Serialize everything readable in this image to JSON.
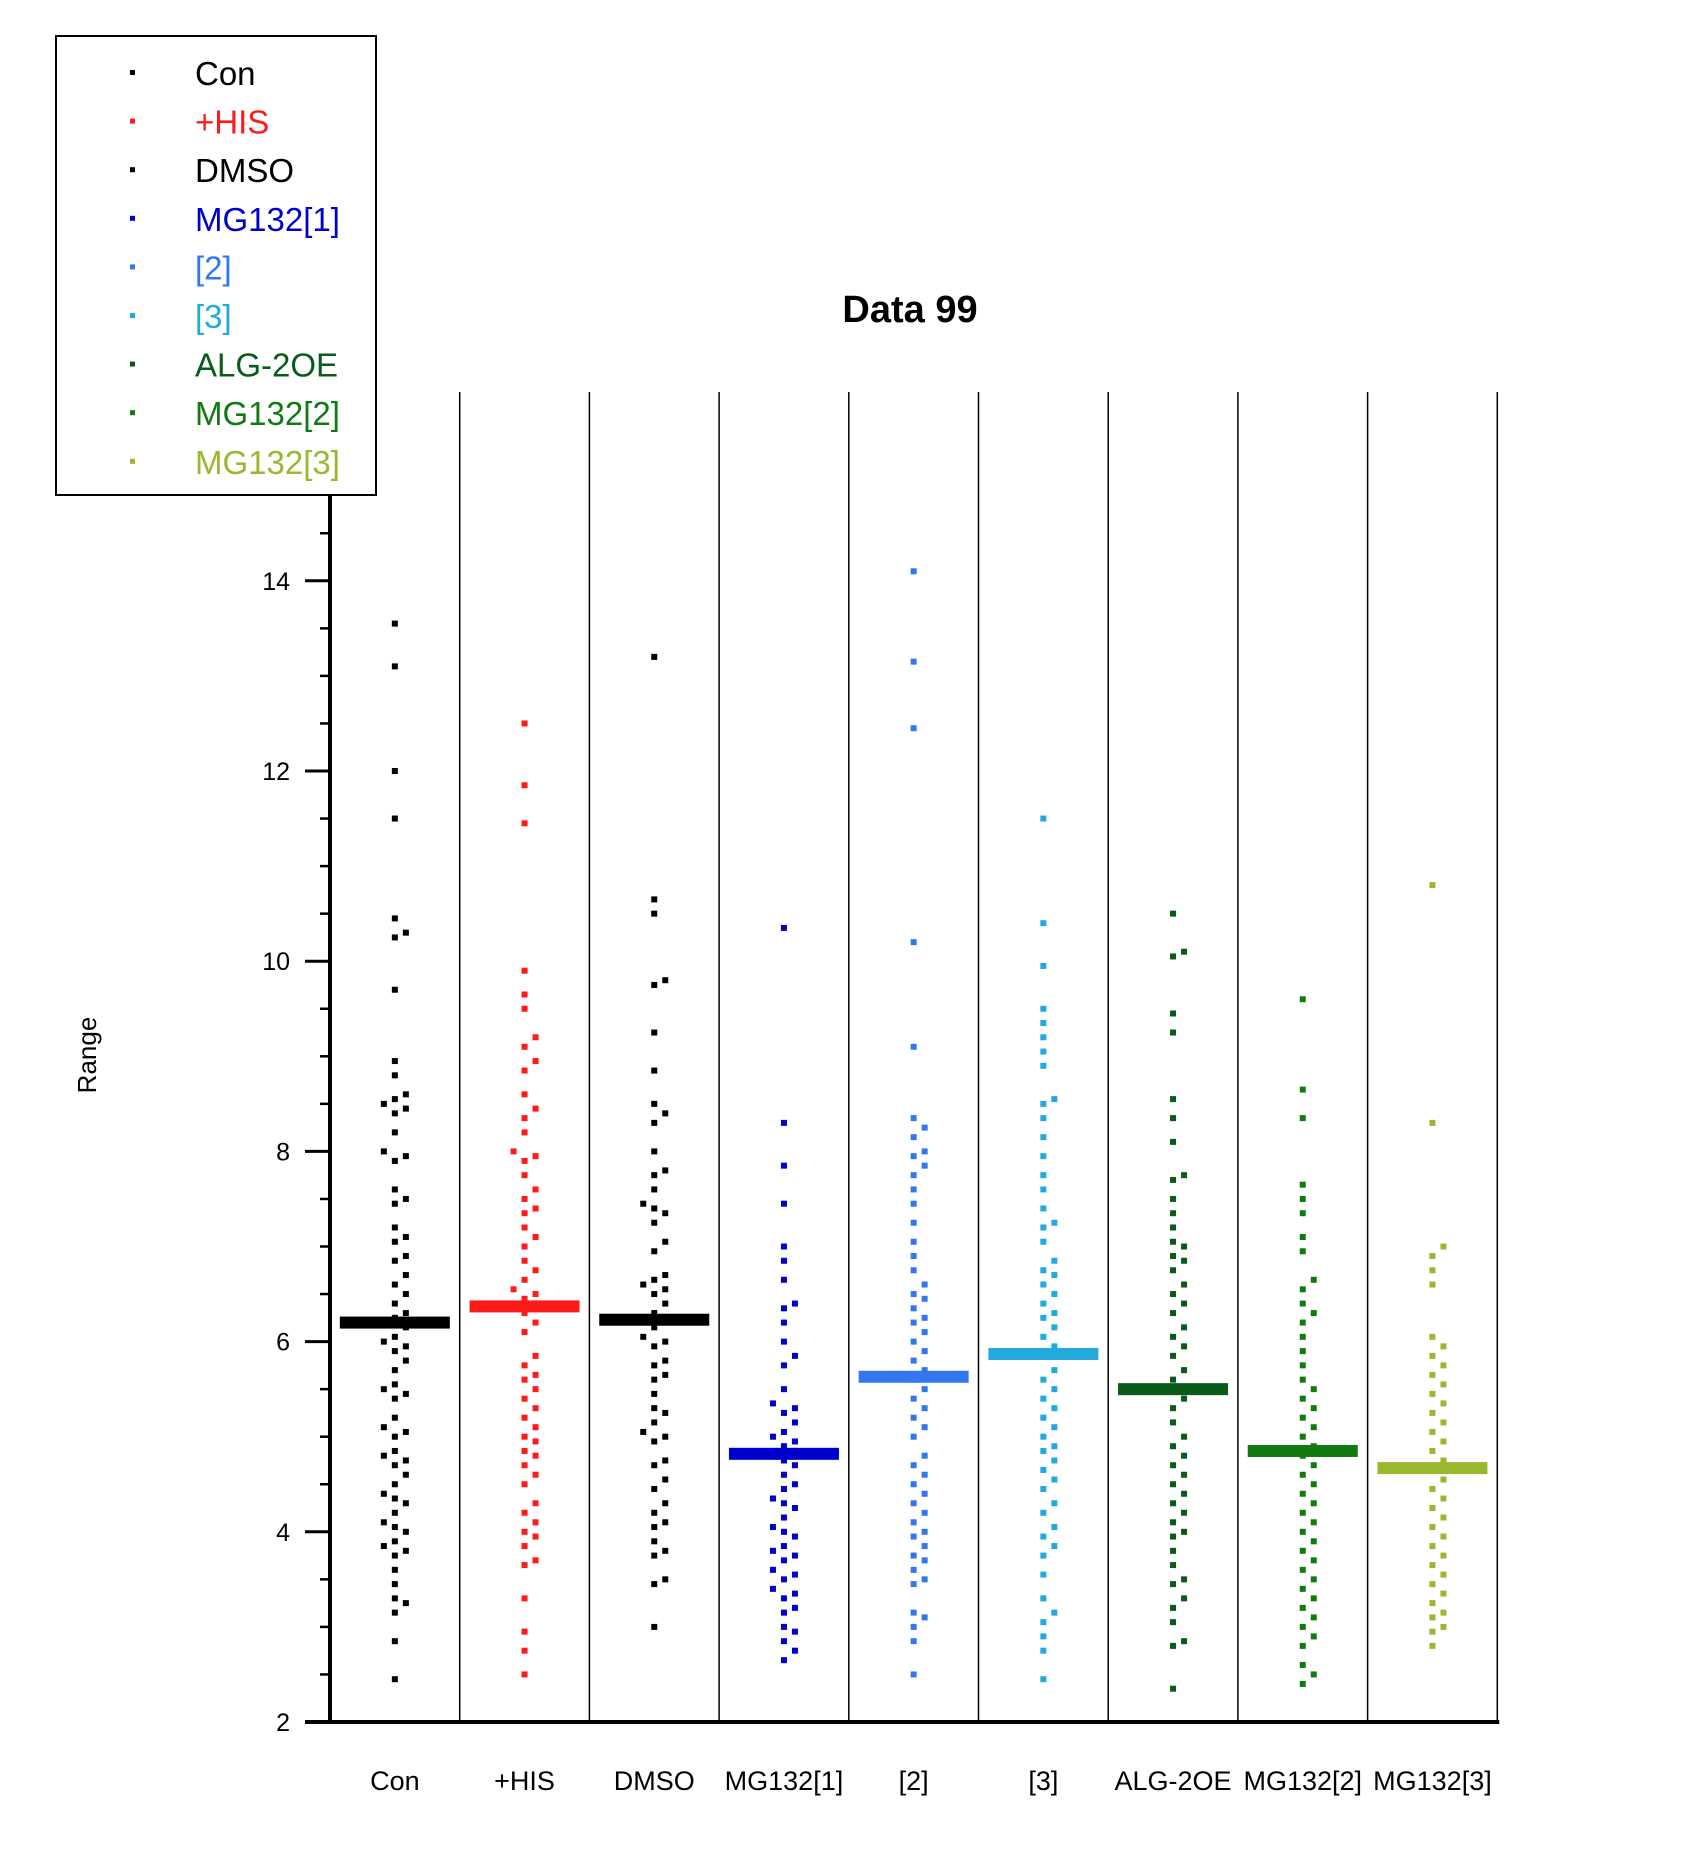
{
  "chart_data": {
    "type": "scatter",
    "title": "Data 99",
    "xlabel": "",
    "ylabel": "Range",
    "ylim": [
      2,
      15
    ],
    "yticks": [
      2,
      4,
      6,
      8,
      10,
      12,
      14
    ],
    "categories": [
      "Con",
      "+HIS",
      "DMSO",
      "MG132[1]",
      "[2]",
      "[3]",
      "ALG-2OE",
      "MG132[2]",
      "MG132[3]"
    ],
    "legend": {
      "position": "top-left",
      "entries": [
        {
          "label": "Con",
          "color": "#000000"
        },
        {
          "label": "+HIS",
          "color": "#ff1a1a"
        },
        {
          "label": "DMSO",
          "color": "#000000"
        },
        {
          "label": "MG132[1]",
          "color": "#0000cc"
        },
        {
          "label": "[2]",
          "color": "#3377ee"
        },
        {
          "label": "[3]",
          "color": "#22aadd"
        },
        {
          "label": "ALG-2OE",
          "color": "#0a5a1a"
        },
        {
          "label": "MG132[2]",
          "color": "#117a11"
        },
        {
          "label": "MG132[3]",
          "color": "#99b830"
        }
      ]
    },
    "series": [
      {
        "name": "Con",
        "color": "#000000",
        "mean": 6.2,
        "values": [
          13.55,
          13.1,
          12.0,
          11.5,
          10.45,
          10.3,
          10.25,
          9.7,
          8.95,
          8.8,
          8.6,
          8.55,
          8.5,
          8.45,
          8.4,
          8.2,
          8.0,
          7.95,
          7.9,
          7.6,
          7.5,
          7.45,
          7.2,
          7.1,
          7.05,
          6.9,
          6.85,
          6.7,
          6.6,
          6.5,
          6.4,
          6.3,
          6.25,
          6.15,
          6.05,
          6.0,
          5.95,
          5.9,
          5.8,
          5.7,
          5.55,
          5.5,
          5.45,
          5.4,
          5.2,
          5.1,
          5.05,
          5.0,
          4.85,
          4.8,
          4.75,
          4.7,
          4.6,
          4.5,
          4.4,
          4.35,
          4.3,
          4.2,
          4.1,
          4.05,
          4.0,
          3.9,
          3.85,
          3.8,
          3.75,
          3.6,
          3.45,
          3.3,
          3.25,
          3.15,
          2.85,
          2.45
        ]
      },
      {
        "name": "+HIS",
        "color": "#ff1a1a",
        "mean": 6.37,
        "values": [
          12.5,
          11.85,
          11.45,
          9.9,
          9.65,
          9.5,
          9.2,
          9.1,
          8.95,
          8.85,
          8.6,
          8.45,
          8.35,
          8.2,
          8.0,
          7.95,
          7.9,
          7.75,
          7.6,
          7.5,
          7.4,
          7.35,
          7.2,
          7.1,
          7.0,
          6.85,
          6.75,
          6.65,
          6.55,
          6.5,
          6.45,
          6.3,
          6.2,
          6.1,
          5.85,
          5.75,
          5.65,
          5.6,
          5.5,
          5.4,
          5.3,
          5.2,
          5.1,
          5.0,
          4.95,
          4.85,
          4.8,
          4.7,
          4.6,
          4.5,
          4.3,
          4.2,
          4.1,
          4.0,
          3.95,
          3.85,
          3.7,
          3.65,
          3.3,
          2.95,
          2.75,
          2.5
        ]
      },
      {
        "name": "DMSO",
        "color": "#000000",
        "mean": 6.23,
        "values": [
          13.2,
          10.65,
          10.5,
          9.8,
          9.75,
          9.25,
          8.85,
          8.5,
          8.4,
          8.3,
          8.0,
          7.8,
          7.75,
          7.6,
          7.45,
          7.4,
          7.35,
          7.25,
          7.05,
          6.95,
          6.7,
          6.65,
          6.6,
          6.55,
          6.5,
          6.4,
          6.3,
          6.15,
          6.05,
          6.0,
          5.95,
          5.8,
          5.75,
          5.65,
          5.6,
          5.45,
          5.3,
          5.25,
          5.15,
          5.05,
          5.0,
          4.95,
          4.75,
          4.7,
          4.55,
          4.45,
          4.3,
          4.2,
          4.1,
          4.05,
          3.9,
          3.8,
          3.75,
          3.5,
          3.45,
          3.0
        ]
      },
      {
        "name": "MG132[1]",
        "color": "#0000cc",
        "mean": 4.82,
        "values": [
          10.35,
          8.3,
          7.85,
          7.45,
          7.0,
          6.85,
          6.65,
          6.4,
          6.35,
          6.2,
          6.0,
          5.85,
          5.75,
          5.5,
          5.35,
          5.3,
          5.25,
          5.15,
          5.05,
          5.0,
          4.95,
          4.9,
          4.75,
          4.7,
          4.6,
          4.5,
          4.45,
          4.35,
          4.3,
          4.25,
          4.15,
          4.05,
          4.0,
          3.95,
          3.85,
          3.8,
          3.75,
          3.7,
          3.6,
          3.55,
          3.5,
          3.4,
          3.35,
          3.3,
          3.2,
          3.15,
          3.0,
          2.95,
          2.85,
          2.75,
          2.65
        ]
      },
      {
        "name": "[2]",
        "color": "#3377ee",
        "mean": 5.63,
        "values": [
          14.1,
          13.15,
          12.45,
          10.2,
          9.1,
          8.35,
          8.25,
          8.15,
          8.0,
          7.95,
          7.85,
          7.75,
          7.6,
          7.45,
          7.25,
          7.05,
          6.9,
          6.75,
          6.6,
          6.5,
          6.45,
          6.35,
          6.25,
          6.2,
          6.1,
          6.0,
          5.9,
          5.8,
          5.7,
          5.6,
          5.5,
          5.4,
          5.3,
          5.2,
          5.1,
          5.0,
          4.8,
          4.7,
          4.6,
          4.5,
          4.4,
          4.3,
          4.2,
          4.1,
          4.0,
          3.95,
          3.85,
          3.75,
          3.7,
          3.6,
          3.5,
          3.45,
          3.15,
          3.1,
          3.0,
          2.85,
          2.5
        ]
      },
      {
        "name": "[3]",
        "color": "#22aadd",
        "mean": 5.87,
        "values": [
          11.5,
          10.4,
          9.95,
          9.5,
          9.35,
          9.2,
          9.05,
          8.9,
          8.55,
          8.5,
          8.35,
          8.15,
          7.95,
          7.75,
          7.6,
          7.4,
          7.25,
          7.2,
          7.05,
          6.85,
          6.75,
          6.7,
          6.6,
          6.5,
          6.4,
          6.3,
          6.25,
          6.15,
          6.05,
          5.95,
          5.85,
          5.7,
          5.6,
          5.5,
          5.4,
          5.3,
          5.2,
          5.1,
          5.0,
          4.9,
          4.85,
          4.75,
          4.65,
          4.55,
          4.45,
          4.3,
          4.2,
          4.05,
          3.95,
          3.85,
          3.75,
          3.55,
          3.3,
          3.15,
          3.05,
          2.9,
          2.75,
          2.45
        ]
      },
      {
        "name": "ALG-2OE",
        "color": "#0a5a1a",
        "mean": 5.5,
        "values": [
          10.5,
          10.1,
          10.05,
          9.45,
          9.25,
          8.55,
          8.35,
          8.1,
          7.75,
          7.7,
          7.5,
          7.35,
          7.2,
          7.05,
          7.0,
          6.9,
          6.85,
          6.75,
          6.6,
          6.5,
          6.4,
          6.3,
          6.15,
          6.05,
          5.95,
          5.85,
          5.7,
          5.6,
          5.4,
          5.3,
          5.15,
          5.0,
          4.9,
          4.8,
          4.7,
          4.6,
          4.5,
          4.4,
          4.3,
          4.2,
          4.1,
          4.0,
          3.95,
          3.8,
          3.65,
          3.5,
          3.45,
          3.3,
          3.2,
          3.05,
          2.85,
          2.8,
          2.35
        ]
      },
      {
        "name": "MG132[2]",
        "color": "#117a11",
        "mean": 4.85,
        "values": [
          9.6,
          8.65,
          8.35,
          7.65,
          7.5,
          7.35,
          7.1,
          6.95,
          6.65,
          6.55,
          6.4,
          6.3,
          6.2,
          6.05,
          5.9,
          5.75,
          5.6,
          5.5,
          5.4,
          5.3,
          5.2,
          5.1,
          5.0,
          4.9,
          4.8,
          4.7,
          4.6,
          4.5,
          4.4,
          4.3,
          4.2,
          4.1,
          4.0,
          3.9,
          3.8,
          3.7,
          3.6,
          3.5,
          3.4,
          3.3,
          3.2,
          3.1,
          3.0,
          2.9,
          2.8,
          2.6,
          2.5,
          2.4
        ]
      },
      {
        "name": "MG132[3]",
        "color": "#99b830",
        "mean": 4.67,
        "values": [
          10.8,
          8.3,
          7.0,
          6.9,
          6.75,
          6.6,
          6.05,
          5.95,
          5.85,
          5.75,
          5.65,
          5.55,
          5.45,
          5.35,
          5.25,
          5.15,
          5.05,
          4.95,
          4.85,
          4.75,
          4.65,
          4.55,
          4.45,
          4.35,
          4.25,
          4.15,
          4.05,
          3.95,
          3.85,
          3.75,
          3.65,
          3.55,
          3.45,
          3.35,
          3.25,
          3.15,
          3.1,
          3.0,
          2.95,
          2.8
        ]
      }
    ]
  }
}
